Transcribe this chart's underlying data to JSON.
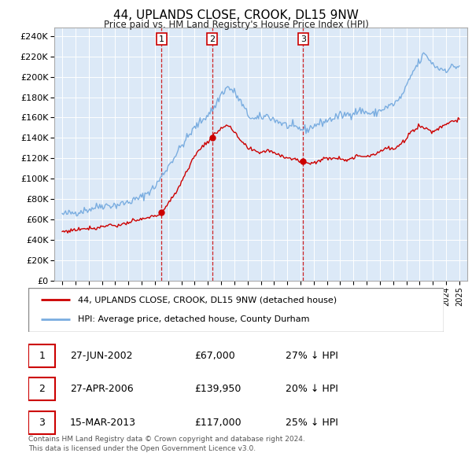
{
  "title": "44, UPLANDS CLOSE, CROOK, DL15 9NW",
  "subtitle": "Price paid vs. HM Land Registry's House Price Index (HPI)",
  "line1_label": "44, UPLANDS CLOSE, CROOK, DL15 9NW (detached house)",
  "line2_label": "HPI: Average price, detached house, County Durham",
  "line1_color": "#cc0000",
  "line2_color": "#7aade0",
  "marker_color": "#cc0000",
  "vline_color": "#cc0000",
  "bg_color": "#dce9f7",
  "yticks": [
    0,
    20000,
    40000,
    60000,
    80000,
    100000,
    120000,
    140000,
    160000,
    180000,
    200000,
    220000,
    240000
  ],
  "transaction_display": [
    {
      "label": "1",
      "date_str": "27-JUN-2002",
      "price_str": "£67,000",
      "hpi_str": "27% ↓ HPI"
    },
    {
      "label": "2",
      "date_str": "27-APR-2006",
      "price_str": "£139,950",
      "hpi_str": "20% ↓ HPI"
    },
    {
      "label": "3",
      "date_str": "15-MAR-2013",
      "price_str": "£117,000",
      "hpi_str": "25% ↓ HPI"
    }
  ],
  "footer": "Contains HM Land Registry data © Crown copyright and database right 2024.\nThis data is licensed under the Open Government Licence v3.0.",
  "transactions_years": [
    2002.496,
    2006.329,
    2013.204
  ],
  "transactions_prices": [
    67000,
    139950,
    117000
  ]
}
